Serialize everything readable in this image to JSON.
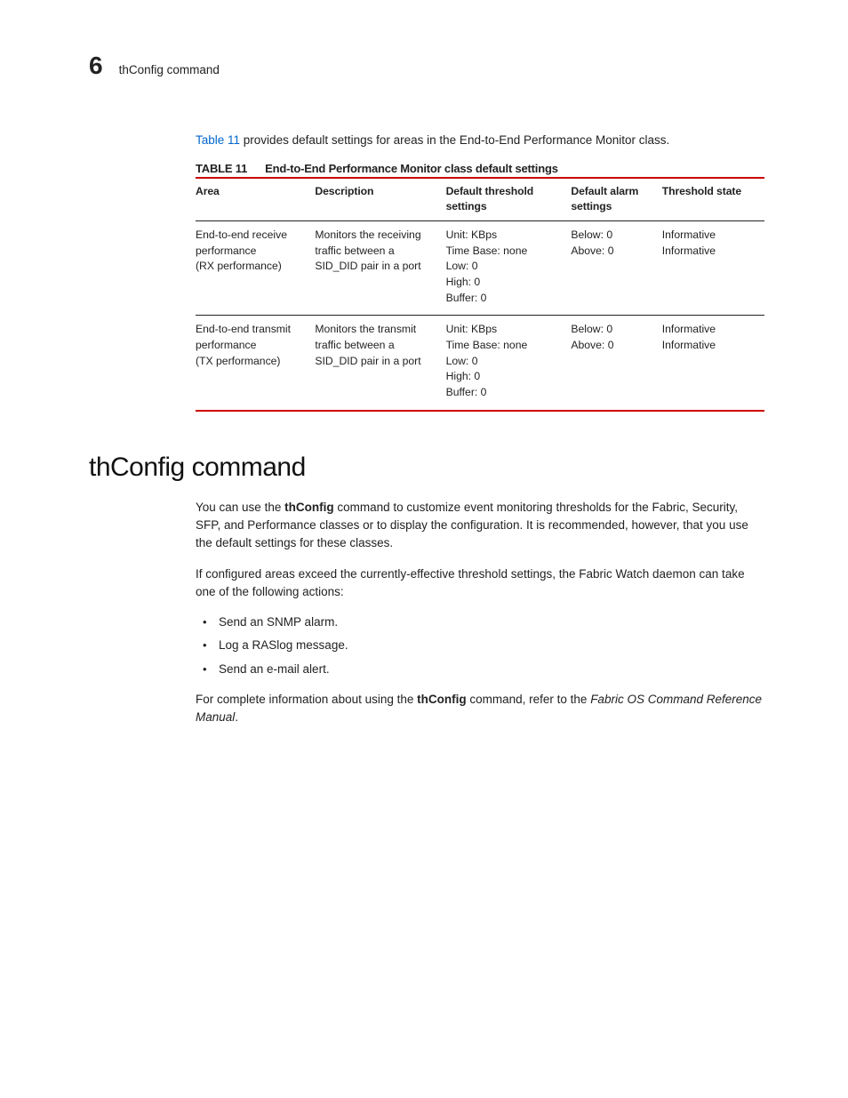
{
  "header": {
    "chapter_number": "6",
    "running_title": "thConfig command"
  },
  "intro": {
    "xref": "Table 11",
    "rest": " provides default settings for areas in the End-to-End Performance Monitor class."
  },
  "table": {
    "label": "TABLE 11",
    "caption": "End-to-End Performance Monitor class default settings",
    "columns": {
      "area": "Area",
      "description": "Description",
      "threshold": "Default threshold settings",
      "alarm": "Default alarm settings",
      "state": "Threshold state"
    },
    "rows": [
      {
        "area": "End-to-end receive performance\n(RX performance)",
        "description": "Monitors the receiving traffic between a SID_DID pair in a port",
        "threshold": "Unit: KBps\nTime Base: none\nLow: 0\nHigh: 0\nBuffer: 0",
        "alarm": "Below: 0\nAbove: 0",
        "state": "Informative\nInformative"
      },
      {
        "area": "End-to-end transmit performance\n(TX performance)",
        "description": "Monitors the transmit traffic between a SID_DID pair in a port",
        "threshold": "Unit: KBps\nTime Base: none\nLow: 0\nHigh: 0\nBuffer: 0",
        "alarm": "Below: 0\nAbove: 0",
        "state": "Informative\nInformative"
      }
    ]
  },
  "section": {
    "heading": "thConfig command",
    "para1_a": "You can use the ",
    "para1_cmd": "thConfig",
    "para1_b": " command to customize event monitoring thresholds for the Fabric, Security, SFP, and Performance classes or to display the configuration. It is recommended, however, that you use the default settings for these classes.",
    "para2": "If configured areas exceed the currently-effective threshold settings, the Fabric Watch daemon can take one of the following actions:",
    "bullets": [
      "Send an SNMP alarm.",
      "Log a RASlog message.",
      "Send an e-mail alert."
    ],
    "para3_a": "For complete information about using the ",
    "para3_cmd": "thConfig",
    "para3_b": " command, refer to the ",
    "para3_ref": "Fabric OS Command Reference Manual",
    "para3_c": "."
  }
}
